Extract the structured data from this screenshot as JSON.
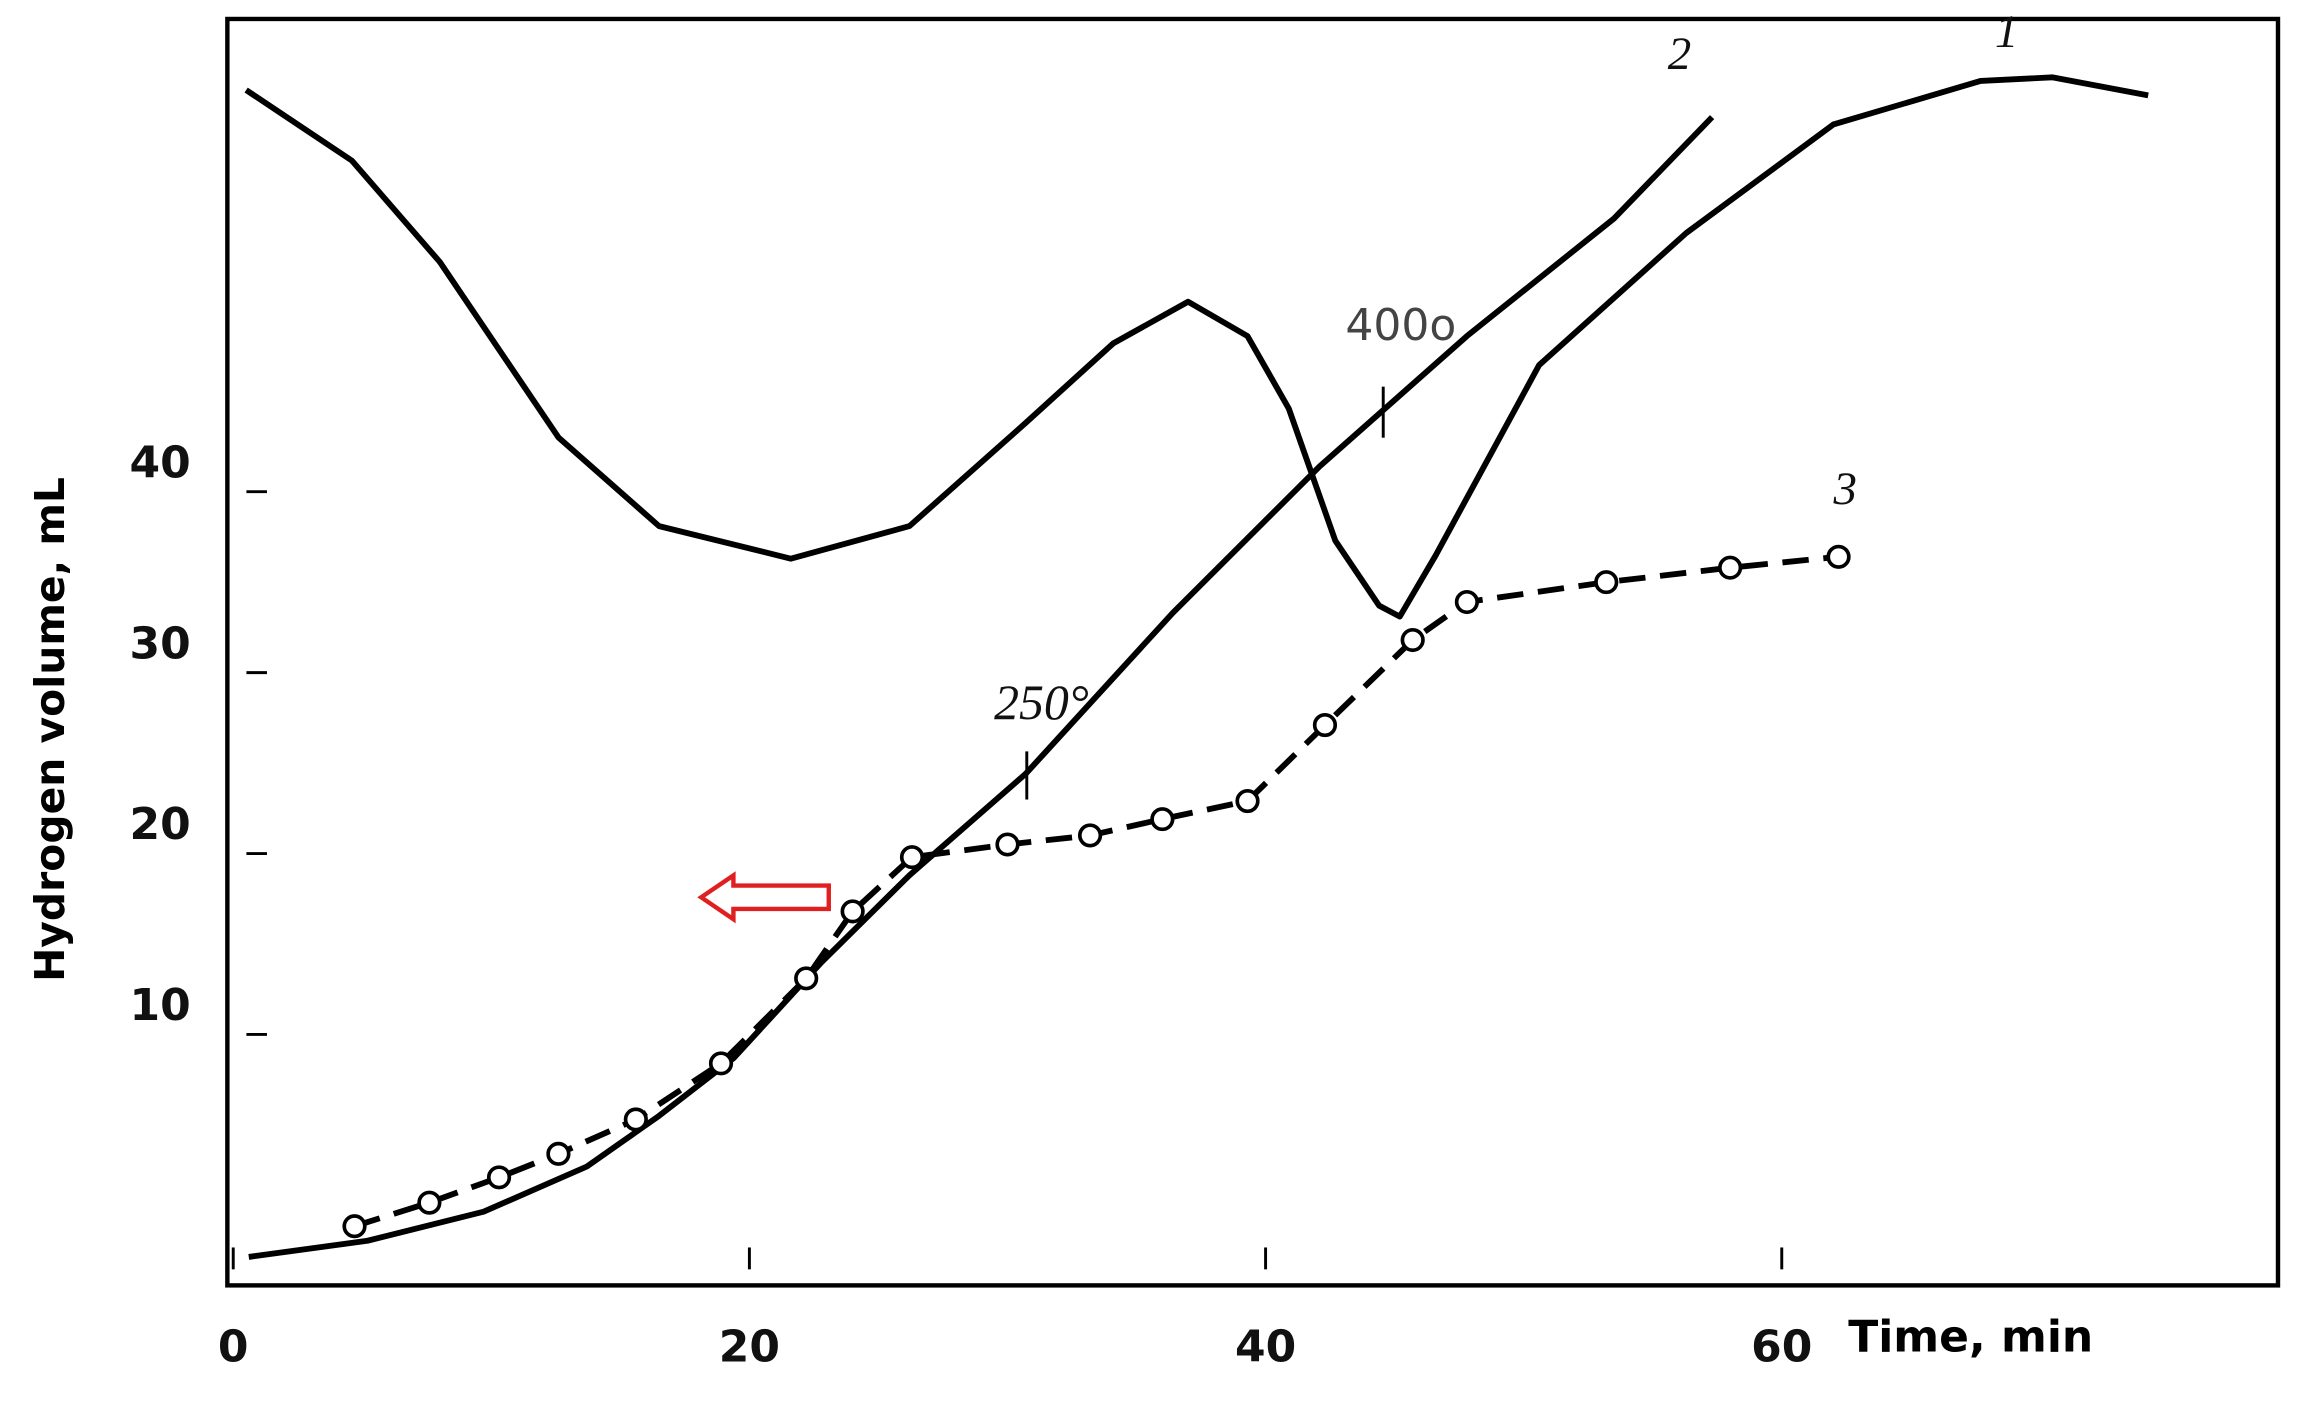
{
  "chart_data": {
    "type": "line",
    "x_label": "Time, min",
    "y_label": "Hydrogen volume, mL",
    "xlim": [
      0,
      79
    ],
    "ylim": [
      -4,
      66
    ],
    "xticks": [
      0,
      20,
      40,
      60
    ],
    "yticks": [
      10,
      20,
      30,
      40
    ],
    "series": [
      {
        "name": "1",
        "color": "#000000",
        "style": "solid",
        "markers": false,
        "x": [
          0.5,
          4.6,
          8,
          12.6,
          16.5,
          21.6,
          26.2,
          30.7,
          34.1,
          37,
          39.3,
          40.9,
          42.7,
          44.4,
          45.2,
          46.6,
          50.6,
          56.3,
          62,
          67.7,
          70.5,
          74.2
        ],
        "values": [
          62.2,
          58.3,
          52.7,
          43,
          38.1,
          36.3,
          38.1,
          43.8,
          48.2,
          50.5,
          48.6,
          44.6,
          37.3,
          33.7,
          33.1,
          36.5,
          47,
          54.3,
          60.3,
          62.7,
          62.9,
          61.9
        ]
      },
      {
        "name": "2",
        "color": "#000000",
        "style": "solid",
        "markers": false,
        "x": [
          0.6,
          5.2,
          9.7,
          13.7,
          16.5,
          19.4,
          22.8,
          26.2,
          30.7,
          36.4,
          42.1,
          47.8,
          53.5,
          57.3
        ],
        "values": [
          -2.3,
          -1.4,
          0.2,
          2.7,
          5.5,
          8.7,
          14,
          18.8,
          24.4,
          33.3,
          41.4,
          48.6,
          55.1,
          60.7
        ]
      },
      {
        "name": "3",
        "color": "#000000",
        "style": "dashed",
        "markers": true,
        "x": [
          4.7,
          7.6,
          10.3,
          12.6,
          15.6,
          18.9,
          22.2,
          24.0,
          26.3,
          30.0,
          33.2,
          36.0,
          39.3,
          42.3,
          45.7,
          47.8,
          53.2,
          58.0,
          62.2
        ],
        "values": [
          -0.6,
          0.7,
          2.1,
          3.4,
          5.3,
          8.4,
          13.1,
          16.8,
          19.8,
          20.5,
          21.0,
          21.9,
          22.9,
          27.1,
          31.8,
          33.9,
          35.0,
          35.8,
          36.4
        ]
      }
    ],
    "annotations": [
      "400o",
      "250°"
    ]
  }
}
